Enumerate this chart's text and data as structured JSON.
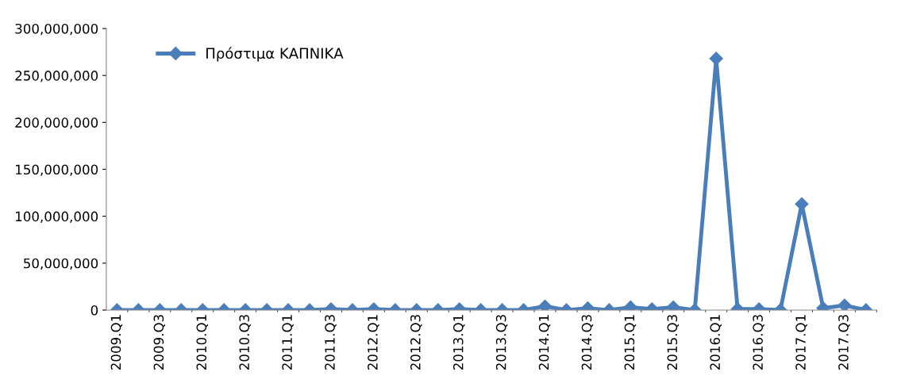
{
  "chart_data": {
    "type": "line",
    "categories": [
      "2009.Q1",
      null,
      "2009.Q3",
      null,
      "2010.Q1",
      null,
      "2010.Q3",
      null,
      "2011.Q1",
      null,
      "2011.Q3",
      null,
      "2012.Q1",
      null,
      "2012.Q3",
      null,
      "2013.Q1",
      null,
      "2013.Q3",
      null,
      "2014.Q1",
      null,
      "2014.Q3",
      null,
      "2015.Q1",
      null,
      "2015.Q3",
      null,
      "2016.Q1",
      null,
      "2016.Q3",
      null,
      "2017.Q1",
      null,
      "2017.Q3",
      null
    ],
    "series": [
      {
        "name": "Πρόστιμα ΚΑΠΝΙΚΑ",
        "color": "#4a7ebb",
        "values": [
          0,
          0,
          0,
          0,
          0,
          0,
          0,
          0,
          0,
          0,
          1000000,
          0,
          1000000,
          0,
          0,
          0,
          1000000,
          0,
          0,
          0,
          4000000,
          0,
          2000000,
          0,
          3000000,
          1000000,
          3000000,
          0,
          268000000,
          1000000,
          1000000,
          0,
          113000000,
          2000000,
          5000000,
          0
        ]
      }
    ],
    "ylim": [
      0,
      300000000
    ],
    "yticks": [
      {
        "value": 0,
        "label": "0"
      },
      {
        "value": 50000000,
        "label": "50,000,000"
      },
      {
        "value": 100000000,
        "label": "100,000,000"
      },
      {
        "value": 150000000,
        "label": "150,000,000"
      },
      {
        "value": 200000000,
        "label": "200,000,000"
      },
      {
        "value": 250000000,
        "label": "250,000,000"
      },
      {
        "value": 300000000,
        "label": "300,000,000"
      }
    ],
    "marker": "diamond",
    "line_style": "solid",
    "legend": "top left",
    "grid": false
  }
}
